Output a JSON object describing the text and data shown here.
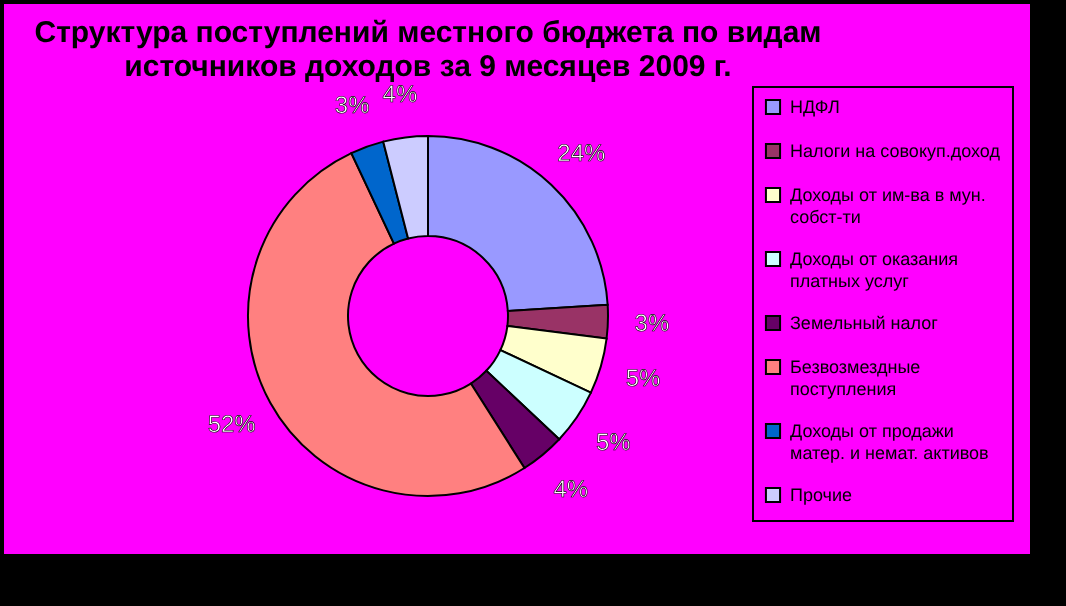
{
  "chart_data": {
    "type": "donut",
    "title": "Структура поступлений местного бюджета по видам источников доходов  за 9 месяцев 2009 г.",
    "categories": [
      "НДФЛ",
      "Налоги на совокуп.доход",
      "Доходы от им-ва в мун. собст-ти",
      "Доходы от оказания платных услуг",
      "Земельный налог",
      "Безвозмездные поступления",
      "Доходы от продажи матер. и немат. активов",
      "Прочие"
    ],
    "values": [
      24,
      3,
      5,
      5,
      4,
      52,
      3,
      4
    ],
    "colors": [
      "#9999ff",
      "#993366",
      "#ffffcc",
      "#ccffff",
      "#660066",
      "#ff8080",
      "#0066cc",
      "#ccccff"
    ],
    "value_labels": [
      "24%",
      "3%",
      "5%",
      "5%",
      "4%",
      "52%",
      "3%",
      "4%"
    ],
    "legend": "right"
  }
}
